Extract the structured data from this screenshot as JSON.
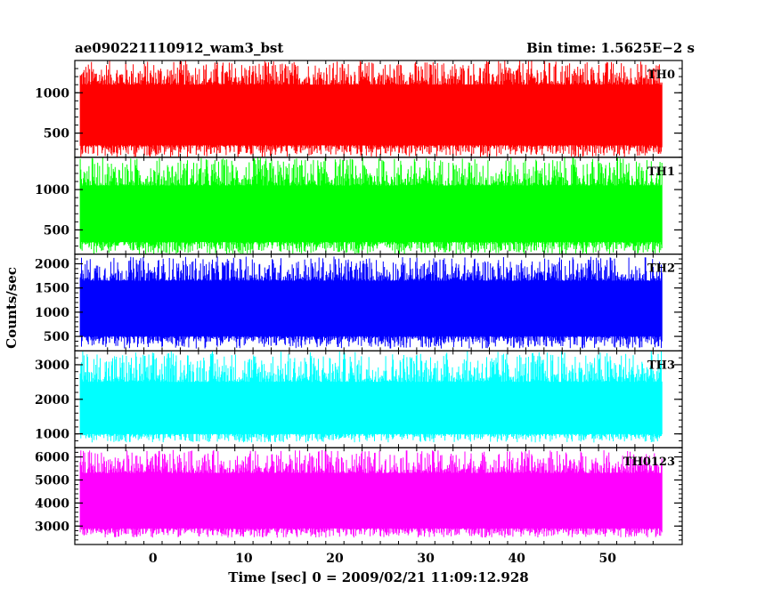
{
  "header": {
    "left_title": "ae090221110912_wam3_bst",
    "right_title": "Bin time: 1.5625E−2 s"
  },
  "chart_data": {
    "type": "line",
    "xlabel": "Time [sec] 0 = 2009/02/21 11:09:12.928",
    "ylabel": "Counts/sec",
    "xlim": [
      -8.6,
      58.2
    ],
    "x_ticks": [
      0,
      10,
      20,
      30,
      40,
      50
    ],
    "x_data_range": [
      -8,
      56
    ],
    "bin_time_s": 0.015625,
    "panels": [
      {
        "name": "TH0",
        "color": "#ff0000",
        "ylim": [
          200,
          1400
        ],
        "y_ticks": [
          500,
          1000
        ],
        "baseline": 650,
        "band_low": 350,
        "band_high": 1100,
        "spike_max": 1400,
        "dip_min": 200
      },
      {
        "name": "TH1",
        "color": "#00ff00",
        "ylim": [
          200,
          1400
        ],
        "y_ticks": [
          500,
          1000
        ],
        "baseline": 650,
        "band_low": 350,
        "band_high": 1050,
        "spike_max": 1400,
        "dip_min": 200
      },
      {
        "name": "TH2",
        "color": "#0000ff",
        "ylim": [
          200,
          2200
        ],
        "y_ticks": [
          500,
          1000,
          1500,
          2000
        ],
        "baseline": 1050,
        "band_low": 500,
        "band_high": 1650,
        "spike_max": 2150,
        "dip_min": 250
      },
      {
        "name": "TH3",
        "color": "#00ffff",
        "ylim": [
          600,
          3400
        ],
        "y_ticks": [
          1000,
          2000,
          3000
        ],
        "baseline": 1700,
        "band_low": 1000,
        "band_high": 2500,
        "spike_max": 3400,
        "dip_min": 750
      },
      {
        "name": "TH0123",
        "color": "#ff00ff",
        "ylim": [
          2200,
          6400
        ],
        "y_ticks": [
          3000,
          4000,
          5000,
          6000
        ],
        "baseline": 4000,
        "band_low": 2900,
        "band_high": 5300,
        "spike_max": 6300,
        "dip_min": 2500
      }
    ]
  }
}
